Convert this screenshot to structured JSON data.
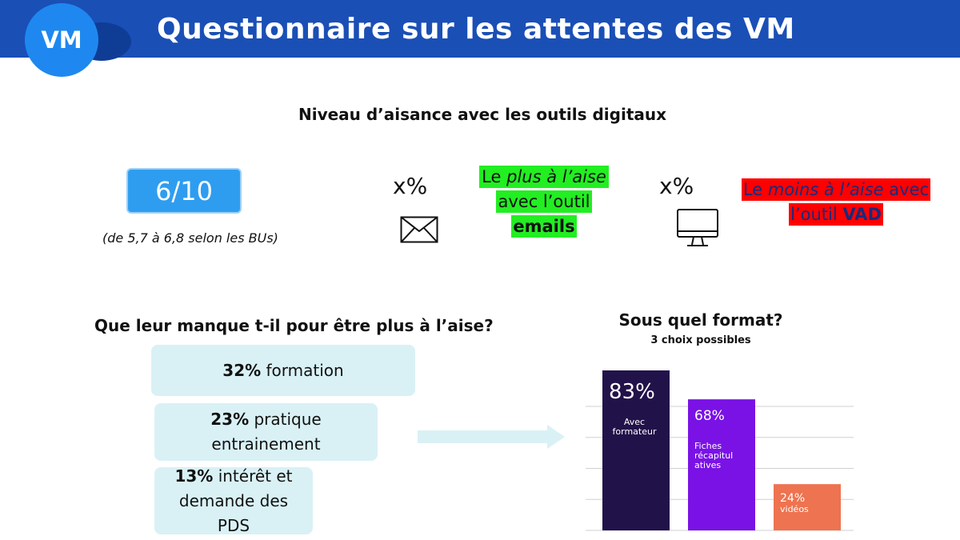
{
  "header": {
    "logo_text": "VM",
    "title": "Questionnaire sur les attentes des VM"
  },
  "subtitle": "Niveau d’aisance avec les outils digitaux",
  "score": {
    "value": "6/10",
    "note": "(de 5,7 à 6,8 selon les BUs)"
  },
  "email_block": {
    "percent": "x%",
    "icon": "envelope-icon",
    "text_before": "Le ",
    "text_italic": "plus à l’aise",
    "text_middle": "avec l’outil",
    "text_bold": "emails",
    "highlight_color": "#22ee22"
  },
  "vad_block": {
    "percent": "x%",
    "icon": "monitor-icon",
    "text_before": "Le ",
    "text_italic": "moins à l’aise",
    "text_after": " avec",
    "text_line2": "l’outil ",
    "text_bold": "VAD",
    "highlight_color": "#ff0000",
    "bold_color": "#1a2a7a"
  },
  "needs": {
    "title": "Que leur manque t-il pour être plus à l’aise?",
    "items": [
      {
        "pct": "32%",
        "label": " formation"
      },
      {
        "pct": "23%",
        "label": " pratique",
        "label2": "entrainement"
      },
      {
        "pct": "13%",
        "label": " intérêt et",
        "label2": "demande des",
        "label3": "PDS"
      }
    ],
    "pill_color": "#d9f1f5"
  },
  "format": {
    "title": "Sous quel format?",
    "subtitle": "3 choix possibles"
  },
  "chart_data": {
    "type": "bar",
    "categories": [
      "Avec formateur",
      "Fiches récapitul atives",
      "vidéos"
    ],
    "values": [
      83,
      68,
      24
    ],
    "value_labels": [
      "83%",
      "68%",
      "24%"
    ],
    "category_lines": [
      [
        "Avec",
        "formateur"
      ],
      [
        "Fiches",
        "récapitul",
        "atives"
      ],
      [
        "vidéos"
      ]
    ],
    "colors": [
      "#22124a",
      "#7a12e6",
      "#ee7350"
    ],
    "ylim": [
      0,
      83
    ],
    "grid": true,
    "legend": "none"
  }
}
